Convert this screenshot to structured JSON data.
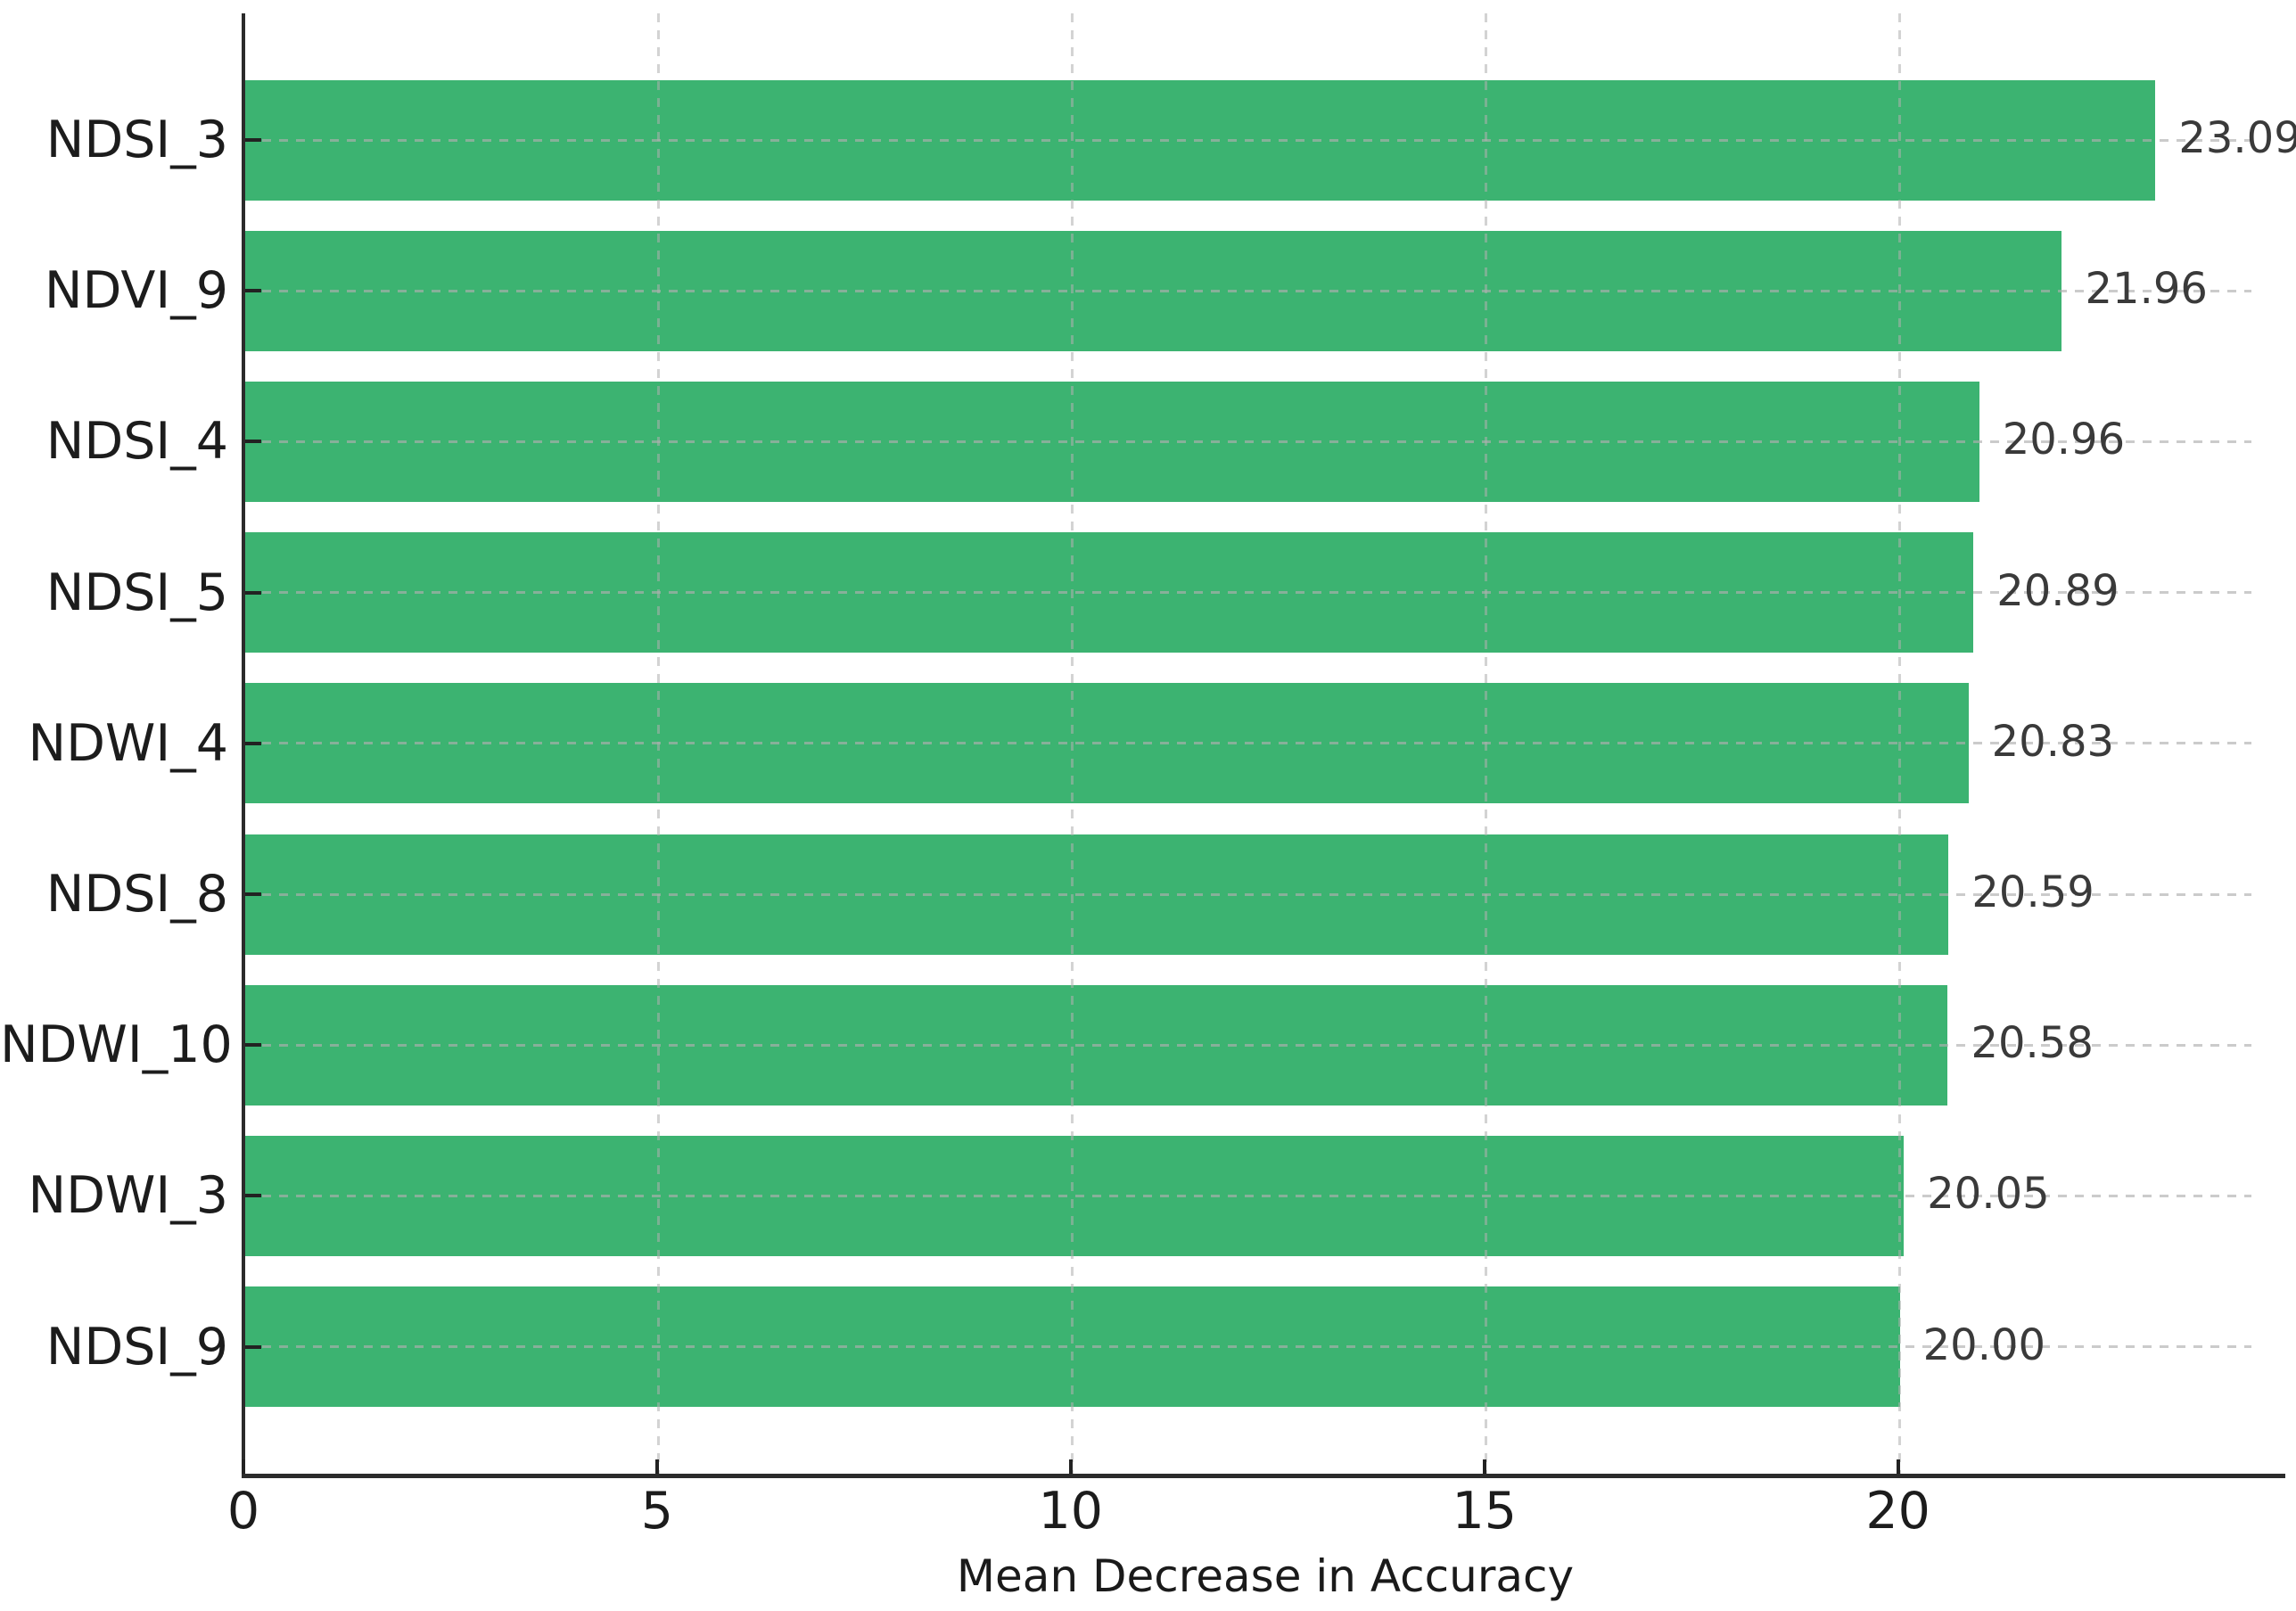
{
  "chart_data": {
    "type": "bar",
    "orientation": "horizontal",
    "title": "",
    "xlabel": "Mean Decrease in Accuracy",
    "ylabel": "",
    "categories": [
      "NDSI_3",
      "NDVI_9",
      "NDSI_4",
      "NDSI_5",
      "NDWI_4",
      "NDSI_8",
      "NDWI_10",
      "NDWI_3",
      "NDSI_9"
    ],
    "values": [
      23.09,
      21.96,
      20.96,
      20.89,
      20.83,
      20.59,
      20.58,
      20.05,
      20.0
    ],
    "value_labels": [
      "23.09",
      "21.96",
      "20.96",
      "20.89",
      "20.83",
      "20.59",
      "20.58",
      "20.05",
      "20.00"
    ],
    "x_ticks": [
      0,
      5,
      10,
      15,
      20
    ],
    "x_tick_labels": [
      "0",
      "5",
      "10",
      "15",
      "20"
    ],
    "xlim": [
      0,
      24.66
    ],
    "bar_color": "#3cb371",
    "grid": true,
    "grid_style": "dashed",
    "legend": false
  }
}
